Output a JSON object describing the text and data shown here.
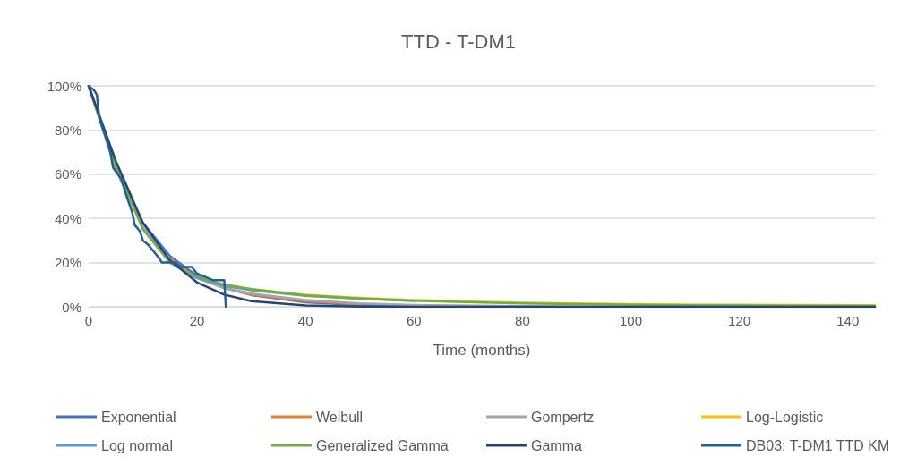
{
  "chart_data": {
    "type": "line",
    "title": "TTD - T-DM1",
    "xlabel": "Time (months)",
    "xlim": [
      0,
      145
    ],
    "xticks": [
      0,
      20,
      40,
      60,
      80,
      100,
      120,
      140
    ],
    "ylim": [
      0,
      100
    ],
    "yticks": [
      {
        "value": 0,
        "label": "0%"
      },
      {
        "value": 20,
        "label": "20%"
      },
      {
        "value": 40,
        "label": "40%"
      },
      {
        "value": 60,
        "label": "60%"
      },
      {
        "value": 80,
        "label": "80%"
      },
      {
        "value": 100,
        "label": "100%"
      }
    ],
    "grid": "y",
    "legend": "bottom",
    "marker": "none",
    "line_style": "solid",
    "x": [
      0,
      5,
      10,
      15,
      20,
      25,
      30,
      40,
      50,
      60,
      80,
      100,
      120,
      145
    ],
    "series": [
      {
        "name": "Exponential",
        "color": "#4472c4",
        "values": [
          100,
          63,
          38,
          23,
          14,
          8.7,
          5.3,
          2,
          0.8,
          0.3,
          null,
          null,
          null,
          null
        ]
      },
      {
        "name": "Weibull",
        "color": "#ed7d31",
        "values": [
          null,
          null,
          null,
          22,
          13,
          8.5,
          5.5,
          2.5,
          1.2,
          null,
          null,
          null,
          null,
          null
        ]
      },
      {
        "name": "Gompertz",
        "color": "#a5a5a5",
        "values": [
          100,
          62,
          36,
          21,
          13,
          8.5,
          6,
          3,
          1.5,
          0.8,
          0.3,
          0.1,
          0,
          0
        ]
      },
      {
        "name": "Log-Logistic",
        "color": "#ffc000",
        "values": [
          null,
          null,
          null,
          null,
          null,
          10,
          8,
          5.5,
          4,
          3,
          1.8,
          1.2,
          0.9,
          0.7
        ]
      },
      {
        "name": "Log normal",
        "color": "#5b9bd5",
        "values": [
          null,
          null,
          null,
          20,
          13,
          9.5,
          7.5,
          5,
          3.6,
          2.6,
          null,
          null,
          null,
          null
        ]
      },
      {
        "name": "Generalized Gamma",
        "color": "#70ad47",
        "values": [
          100,
          64,
          35,
          20,
          13.5,
          10,
          8,
          5.2,
          3.7,
          2.7,
          1.5,
          0.9,
          0.6,
          0.4
        ]
      },
      {
        "name": "Gamma",
        "color": "#264478",
        "values": [
          100,
          66,
          38,
          21,
          11,
          5.5,
          2.5,
          0.6,
          0.1,
          0,
          0,
          0,
          0,
          0
        ]
      },
      {
        "name": "DB03: T-DM1 TTD KM",
        "color": "#255e91",
        "x": [
          0,
          1,
          1.5,
          2,
          3,
          4,
          4.5,
          6,
          7,
          8,
          8.5,
          9.5,
          10,
          11,
          12,
          13,
          13.5,
          16,
          17,
          19,
          20,
          21,
          22,
          23,
          25,
          25.3
        ],
        "values": [
          100,
          98,
          96,
          85,
          78,
          70,
          63,
          58,
          50,
          43,
          37,
          34,
          30,
          28,
          25,
          22,
          20,
          20,
          18,
          18,
          15,
          14,
          13,
          12,
          12,
          0
        ]
      }
    ]
  }
}
